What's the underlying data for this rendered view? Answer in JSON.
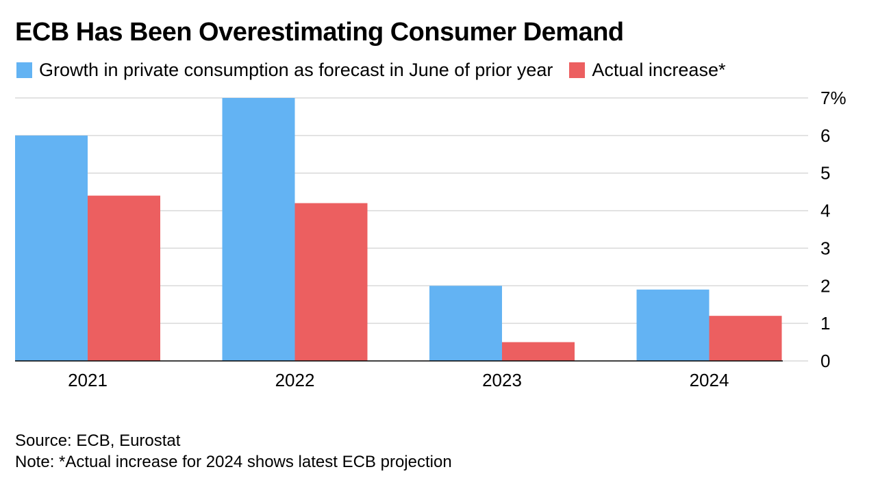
{
  "chart_data": {
    "type": "bar",
    "title": "ECB Has Been Overestimating Consumer Demand",
    "categories": [
      "2021",
      "2022",
      "2023",
      "2024"
    ],
    "series": [
      {
        "name": "Growth in private consumption as forecast in June of prior year",
        "color": "#63b3f3",
        "values": [
          6.0,
          7.0,
          2.0,
          1.9
        ]
      },
      {
        "name": "Actual increase*",
        "color": "#ec5f60",
        "values": [
          4.4,
          4.2,
          0.5,
          1.2
        ]
      }
    ],
    "ylim": [
      0,
      7
    ],
    "yticks": [
      {
        "value": 0,
        "label": "0"
      },
      {
        "value": 1,
        "label": "1"
      },
      {
        "value": 2,
        "label": "2"
      },
      {
        "value": 3,
        "label": "3"
      },
      {
        "value": 4,
        "label": "4"
      },
      {
        "value": 5,
        "label": "5"
      },
      {
        "value": 6,
        "label": "6"
      },
      {
        "value": 7,
        "label": "7%"
      }
    ],
    "grid": true,
    "legend_position": "top-left",
    "y_axis_position": "right",
    "source": "Source: ECB, Eurostat",
    "note": "Note: *Actual increase for 2024 shows latest ECB projection"
  }
}
